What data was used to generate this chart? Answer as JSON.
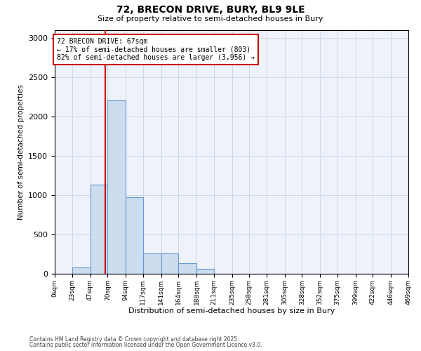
{
  "title": "72, BRECON DRIVE, BURY, BL9 9LE",
  "subtitle": "Size of property relative to semi-detached houses in Bury",
  "xlabel": "Distribution of semi-detached houses by size in Bury",
  "ylabel": "Number of semi-detached properties",
  "footnote1": "Contains HM Land Registry data © Crown copyright and database right 2025.",
  "footnote2": "Contains public sector information licensed under the Open Government Licence v3.0.",
  "property_label": "72 BRECON DRIVE: 67sqm",
  "smaller_pct": "17%",
  "smaller_n": "803",
  "larger_pct": "82%",
  "larger_n": "3,956",
  "property_size": 67,
  "bar_color": "#ccddf0",
  "bar_edge_color": "#6699cc",
  "vline_color": "#cc0000",
  "annotation_box_color": "#cc0000",
  "grid_color": "#d0d8e8",
  "bg_color": "#eef2fa",
  "bins": [
    0,
    23,
    47,
    70,
    94,
    117,
    141,
    164,
    188,
    211,
    235,
    258,
    281,
    305,
    328,
    352,
    375,
    399,
    422,
    446,
    469
  ],
  "bin_labels": [
    "0sqm",
    "23sqm",
    "47sqm",
    "70sqm",
    "94sqm",
    "117sqm",
    "141sqm",
    "164sqm",
    "188sqm",
    "211sqm",
    "235sqm",
    "258sqm",
    "281sqm",
    "305sqm",
    "328sqm",
    "352sqm",
    "375sqm",
    "399sqm",
    "422sqm",
    "446sqm",
    "469sqm"
  ],
  "counts": [
    0,
    80,
    1130,
    2200,
    970,
    260,
    260,
    130,
    65,
    0,
    0,
    0,
    0,
    0,
    0,
    0,
    0,
    0,
    0,
    0
  ],
  "ylim": [
    0,
    3100
  ],
  "yticks": [
    0,
    500,
    1000,
    1500,
    2000,
    2500,
    3000
  ]
}
